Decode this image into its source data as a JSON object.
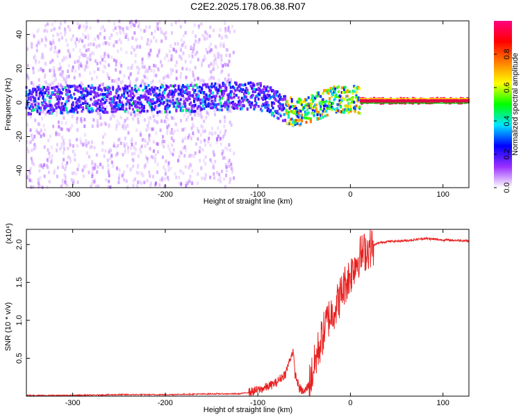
{
  "figure_title": "C2E2.2025.178.06.38.R07",
  "chart_data": [
    {
      "type": "heatmap",
      "title": "C2E2.2025.178.06.38.R07",
      "xlabel": "Height of straight line (km)",
      "ylabel": "Frequency (Hz)",
      "xlim": [
        -350,
        128
      ],
      "ylim": [
        -50,
        48
      ],
      "xticks": [
        -300,
        -200,
        -100,
        0,
        100
      ],
      "xtick_labels": [
        "-300",
        "-200",
        "-100",
        "0",
        "100"
      ],
      "yticks": [
        -40,
        -20,
        0,
        20,
        40
      ],
      "ytick_labels": [
        "-40",
        "-20",
        "0",
        "20",
        "40"
      ],
      "colorbar": {
        "label": "Normalized spectral amplitude",
        "range": [
          0,
          1
        ],
        "ticks": [
          0.0,
          0.2,
          0.4,
          0.6,
          0.8
        ],
        "tick_labels": [
          "0.0",
          "0.2",
          "0.4",
          "0.6",
          "0.8"
        ],
        "colors": [
          "#ffffff",
          "#9b30ff",
          "#0000ff",
          "#00e5ff",
          "#00ff00",
          "#ffff00",
          "#ff8000",
          "#ff0000",
          "#ff0080"
        ]
      },
      "ridge": {
        "description_points_x": [
          -350,
          -300,
          -250,
          -200,
          -150,
          -120,
          -100,
          -90,
          -80,
          -70,
          -60,
          -50,
          -40,
          -30,
          -20,
          -10,
          0,
          10,
          50,
          128
        ],
        "description_points_freq": [
          1,
          2,
          2,
          2,
          3,
          4,
          4,
          2,
          -1,
          -4,
          -6,
          -5,
          -3,
          -1,
          1,
          2,
          2,
          1,
          1,
          1
        ]
      }
    },
    {
      "type": "line",
      "xlabel": "Height of straight line (km)",
      "ylabel": "SNR (10 * v/v)",
      "y_multiplier": "(x10⁴)",
      "xlim": [
        -350,
        128
      ],
      "ylim": [
        0,
        2.2
      ],
      "xticks": [
        -300,
        -200,
        -100,
        0,
        100
      ],
      "xtick_labels": [
        "-300",
        "-200",
        "-100",
        "0",
        "100"
      ],
      "yticks": [
        0.5,
        1.0,
        1.5,
        2.0
      ],
      "ytick_labels": [
        "0.5",
        "1.0",
        "1.5",
        "2.0"
      ],
      "series_color": "#e8201f",
      "series": [
        {
          "x": [
            -350,
            -300,
            -250,
            -200,
            -150,
            -120,
            -110,
            -100,
            -90,
            -80,
            -70,
            -65,
            -62,
            -60,
            -55,
            -50,
            -45,
            -40,
            -35,
            -30,
            -25,
            -20,
            -15,
            -10,
            -5,
            0,
            5,
            10,
            20,
            30,
            40,
            60,
            80,
            100,
            128
          ],
          "values": [
            0.01,
            0.01,
            0.02,
            0.02,
            0.03,
            0.03,
            0.05,
            0.08,
            0.12,
            0.18,
            0.3,
            0.5,
            0.6,
            0.3,
            0.1,
            0.05,
            0.15,
            0.35,
            0.6,
            0.8,
            1.0,
            1.1,
            1.2,
            1.35,
            1.5,
            1.6,
            1.75,
            1.85,
            1.95,
            2.02,
            2.04,
            2.05,
            2.08,
            2.06,
            2.05
          ]
        }
      ]
    }
  ]
}
